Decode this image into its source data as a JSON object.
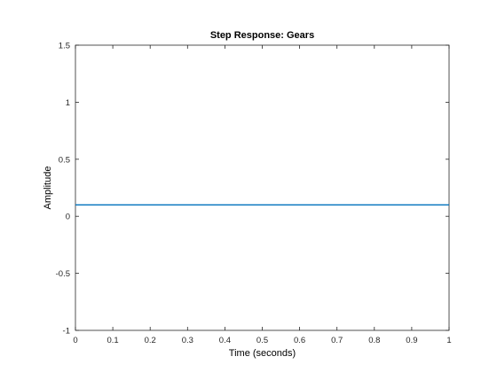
{
  "chart_data": {
    "type": "line",
    "title": "Step Response: Gears",
    "xlabel": "Time (seconds)",
    "ylabel": "Amplitude",
    "xlim": [
      0,
      1
    ],
    "ylim": [
      -1,
      1.5
    ],
    "xticks": [
      0,
      0.1,
      0.2,
      0.3,
      0.4,
      0.5,
      0.6,
      0.7,
      0.8,
      0.9,
      1
    ],
    "xtick_labels": [
      "0",
      "0.1",
      "0.2",
      "0.3",
      "0.4",
      "0.5",
      "0.6",
      "0.7",
      "0.8",
      "0.9",
      "1"
    ],
    "yticks": [
      -1,
      -0.5,
      0,
      0.5,
      1,
      1.5
    ],
    "ytick_labels": [
      "-1",
      "-0.5",
      "0",
      "0.5",
      "1",
      "1.5"
    ],
    "grid": false,
    "series": [
      {
        "x": [
          0,
          1
        ],
        "y": [
          0.1,
          0.1
        ],
        "color": "#0072BD"
      }
    ]
  }
}
